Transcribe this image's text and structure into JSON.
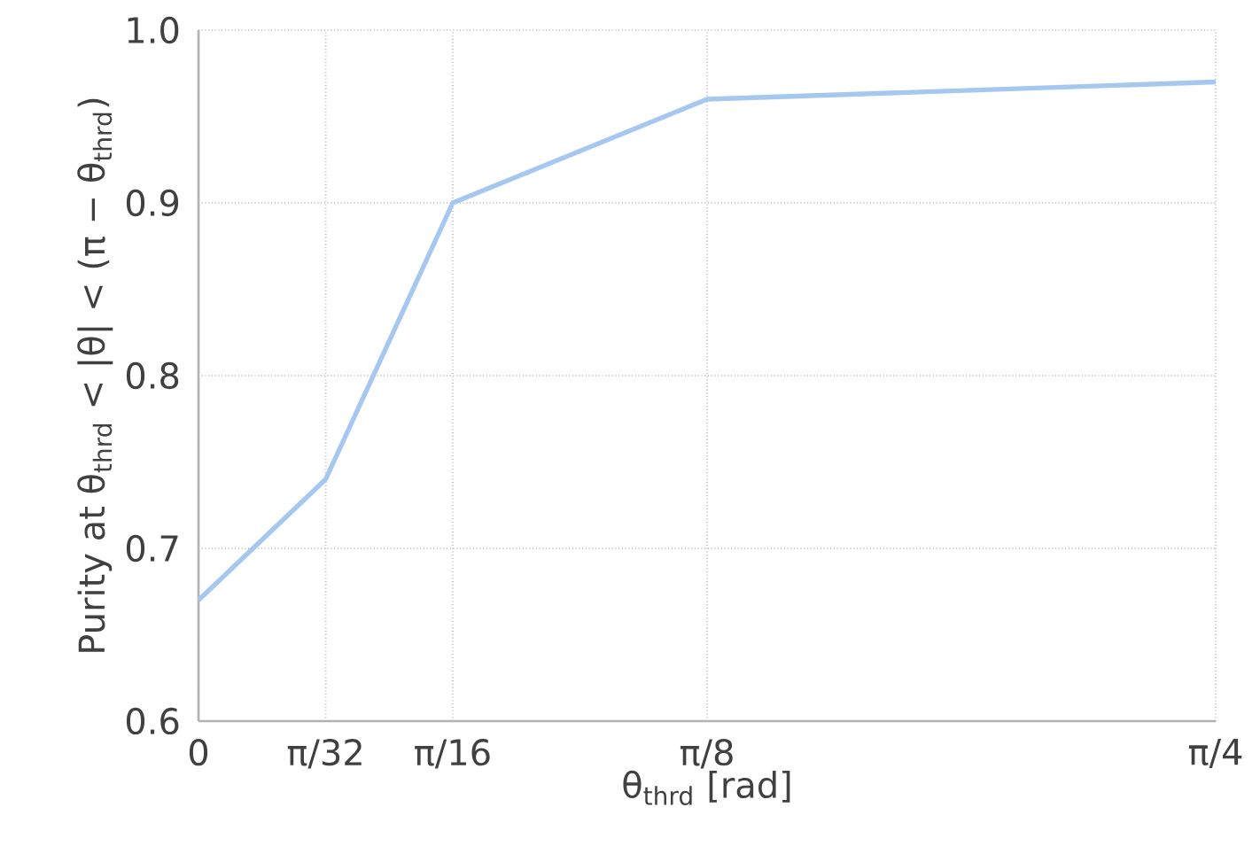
{
  "chart_data": {
    "type": "line",
    "xlabel": "θ$_{thrd}$ [rad]",
    "ylabel": "Purity at θ$_{thrd}$ < |θ| < (π − θ$_{thrd}$)",
    "x": [
      0,
      0.0982,
      0.1963,
      0.3927,
      0.7854
    ],
    "series": [
      {
        "color": "#a6c8f0",
        "values": [
          0.67,
          0.74,
          0.9,
          0.96,
          0.97
        ]
      }
    ],
    "xlim": [
      0,
      0.7854
    ],
    "xticks": [
      {
        "value": 0,
        "label": "0"
      },
      {
        "value": 0.0982,
        "label": "π/32"
      },
      {
        "value": 0.1963,
        "label": "π/16"
      },
      {
        "value": 0.3927,
        "label": "π/8"
      },
      {
        "value": 0.7854,
        "label": "π/4"
      }
    ],
    "ylim": [
      0.6,
      1.0
    ],
    "yticks": [
      {
        "value": 0.6,
        "label": "0.6"
      },
      {
        "value": 0.7,
        "label": "0.7"
      },
      {
        "value": 0.8,
        "label": "0.8"
      },
      {
        "value": 0.9,
        "label": "0.9"
      },
      {
        "value": 1.0,
        "label": "1.0"
      }
    ],
    "grid": true,
    "marker": "none",
    "line_style": "solid"
  }
}
